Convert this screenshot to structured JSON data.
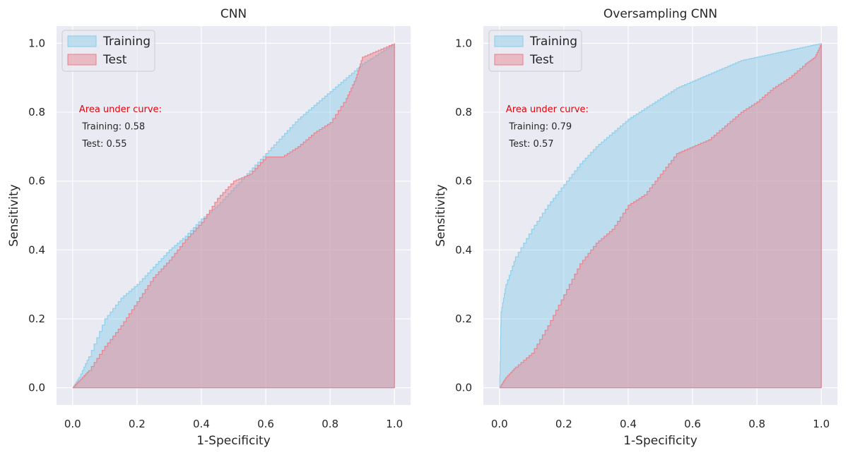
{
  "colors": {
    "plot_bg": "#EAEAF2",
    "grid": "#FFFFFF",
    "training_fill": "#87CEEB",
    "training_stroke": "#87CEEB",
    "test_fill": "#E8808A",
    "test_stroke": "#E8808A",
    "annotation_head": "#E8000B"
  },
  "chart_data": [
    {
      "type": "area",
      "title": "CNN",
      "xlabel": "1-Specificity",
      "ylabel": "Sensitivity",
      "xlim": [
        -0.05,
        1.05
      ],
      "ylim": [
        -0.05,
        1.05
      ],
      "xticks": [
        "0.0",
        "0.2",
        "0.4",
        "0.6",
        "0.8",
        "1.0"
      ],
      "yticks": [
        "0.0",
        "0.2",
        "0.4",
        "0.6",
        "0.8",
        "1.0"
      ],
      "grid": true,
      "legend": {
        "placement": "top-left",
        "entries": [
          "Training",
          "Test"
        ]
      },
      "annotation": {
        "head": "Area under curve:",
        "lines": [
          "Training: 0.58",
          "Test: 0.55"
        ]
      },
      "series": [
        {
          "name": "Training",
          "x": [
            0,
            0.02,
            0.05,
            0.1,
            0.15,
            0.2,
            0.25,
            0.3,
            0.35,
            0.4,
            0.45,
            0.5,
            0.55,
            0.6,
            0.65,
            0.7,
            0.75,
            0.8,
            0.85,
            0.9,
            0.95,
            1.0
          ],
          "y": [
            0,
            0.03,
            0.09,
            0.2,
            0.26,
            0.3,
            0.35,
            0.4,
            0.44,
            0.49,
            0.53,
            0.58,
            0.63,
            0.68,
            0.73,
            0.78,
            0.82,
            0.86,
            0.9,
            0.94,
            0.97,
            1.0
          ]
        },
        {
          "name": "Test",
          "x": [
            0,
            0.02,
            0.05,
            0.1,
            0.15,
            0.2,
            0.25,
            0.3,
            0.35,
            0.4,
            0.45,
            0.5,
            0.55,
            0.6,
            0.65,
            0.7,
            0.75,
            0.8,
            0.85,
            0.88,
            0.9,
            0.95,
            1.0
          ],
          "y": [
            0,
            0.02,
            0.05,
            0.12,
            0.18,
            0.25,
            0.32,
            0.37,
            0.43,
            0.48,
            0.55,
            0.6,
            0.62,
            0.67,
            0.67,
            0.7,
            0.74,
            0.77,
            0.84,
            0.9,
            0.96,
            0.98,
            1.0
          ]
        }
      ]
    },
    {
      "type": "area",
      "title": "Oversampling CNN",
      "xlabel": "1-Specificity",
      "ylabel": "Sensitivity",
      "xlim": [
        -0.05,
        1.05
      ],
      "ylim": [
        -0.05,
        1.05
      ],
      "xticks": [
        "0.0",
        "0.2",
        "0.4",
        "0.6",
        "0.8",
        "1.0"
      ],
      "yticks": [
        "0.0",
        "0.2",
        "0.4",
        "0.6",
        "0.8",
        "1.0"
      ],
      "grid": true,
      "legend": {
        "placement": "top-left",
        "entries": [
          "Training",
          "Test"
        ]
      },
      "annotation": {
        "head": "Area under curve:",
        "lines": [
          "Training: 0.79",
          "Test: 0.57"
        ]
      },
      "series": [
        {
          "name": "Training",
          "x": [
            0,
            0.005,
            0.02,
            0.05,
            0.1,
            0.15,
            0.2,
            0.25,
            0.3,
            0.35,
            0.4,
            0.45,
            0.5,
            0.55,
            0.6,
            0.65,
            0.7,
            0.75,
            0.8,
            0.85,
            0.9,
            0.95,
            1.0
          ],
          "y": [
            0,
            0.22,
            0.3,
            0.38,
            0.46,
            0.53,
            0.59,
            0.65,
            0.7,
            0.74,
            0.78,
            0.81,
            0.84,
            0.87,
            0.89,
            0.91,
            0.93,
            0.95,
            0.96,
            0.97,
            0.98,
            0.99,
            1.0
          ]
        },
        {
          "name": "Test",
          "x": [
            0,
            0.02,
            0.05,
            0.1,
            0.15,
            0.2,
            0.25,
            0.3,
            0.35,
            0.4,
            0.45,
            0.5,
            0.55,
            0.6,
            0.65,
            0.7,
            0.75,
            0.8,
            0.85,
            0.9,
            0.95,
            0.98,
            1.0
          ],
          "y": [
            0,
            0.03,
            0.06,
            0.1,
            0.18,
            0.27,
            0.36,
            0.42,
            0.46,
            0.53,
            0.56,
            0.62,
            0.68,
            0.7,
            0.72,
            0.76,
            0.8,
            0.83,
            0.87,
            0.9,
            0.94,
            0.96,
            1.0
          ]
        }
      ]
    }
  ]
}
